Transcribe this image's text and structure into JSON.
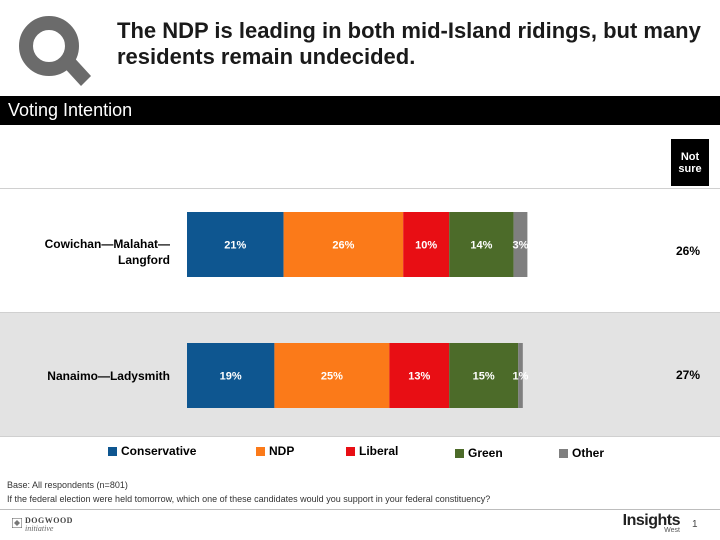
{
  "header": {
    "headline": "The NDP is leading in both mid-Island ridings, but many residents remain undecided.",
    "section_title": "Voting Intention",
    "logo_icon": "magnifier-q-icon"
  },
  "chart_data": {
    "type": "bar",
    "orientation": "horizontal",
    "stacked": true,
    "title": "Voting Intention",
    "categories": [
      "Cowichan—Malahat—Langford",
      "Nanaimo—Ladysmith"
    ],
    "category_lines": [
      [
        "Cowichan—Malahat—",
        "Langford"
      ],
      [
        "Nanaimo—Ladysmith"
      ]
    ],
    "series": [
      {
        "name": "Conservative",
        "color": "#0e5690",
        "values": [
          21,
          19
        ],
        "labels": [
          "21%",
          "19%"
        ]
      },
      {
        "name": "NDP",
        "color": "#fb7a19",
        "values": [
          26,
          25
        ],
        "labels": [
          "26%",
          "25%"
        ]
      },
      {
        "name": "Liberal",
        "color": "#e80e14",
        "values": [
          10,
          13
        ],
        "labels": [
          "10%",
          "13%"
        ]
      },
      {
        "name": "Green",
        "color": "#4c6b29",
        "values": [
          14,
          15
        ],
        "labels": [
          "14%",
          "15%"
        ]
      },
      {
        "name": "Other",
        "color": "#7f7f7f",
        "values": [
          3,
          1
        ],
        "labels": [
          "3%",
          "1%"
        ]
      }
    ],
    "not_sure": {
      "header_lines": [
        "Not",
        "sure"
      ],
      "values": [
        26,
        27
      ],
      "labels": [
        "26%",
        "27%"
      ]
    },
    "xlim": [
      0,
      100
    ],
    "legend_position": "bottom"
  },
  "footnotes": {
    "base": "Base: All respondents (n=801)",
    "question": "If the federal election were held tomorrow, which one of these candidates would you support in your federal constituency?"
  },
  "footer": {
    "left_logo_line1": "DOGWOOD",
    "left_logo_line2": "initiative",
    "right_logo_line1": "Insights",
    "right_logo_line2": "West",
    "page_number": "1"
  }
}
